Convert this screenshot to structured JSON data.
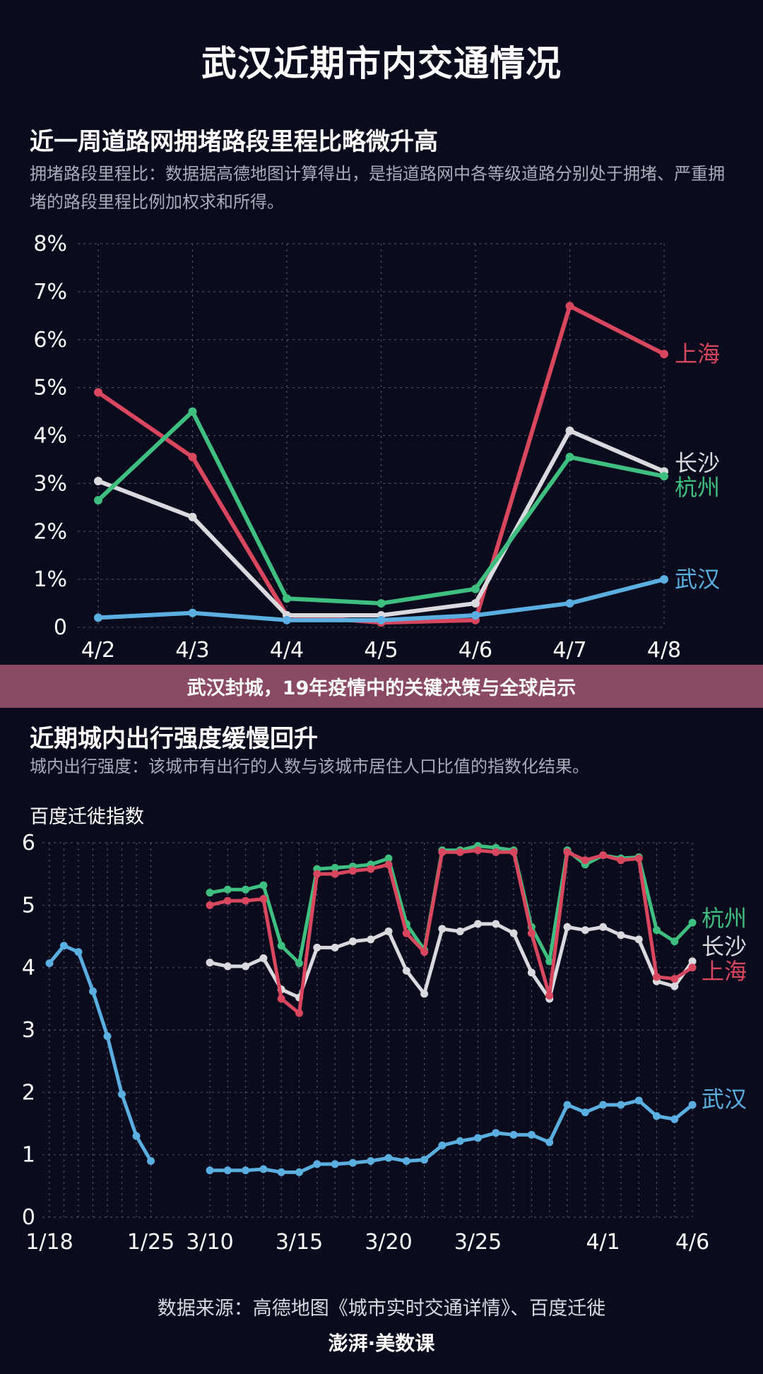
{
  "header": {
    "title": "武汉近期市内交通情况"
  },
  "section1": {
    "title": "近一周道路网拥堵路段里程比略微升高",
    "description": "拥堵路段里程比：数据据高德地图计算得出，是指道路网中各等级道路分别处于拥堵、严重拥堵的路段里程比例加权求和所得。"
  },
  "banner": {
    "text": "武汉封城，19年疫情中的关键决策与全球启示"
  },
  "section2": {
    "title": "近期城内出行强度缓慢回升",
    "description": "城内出行强度：该城市有出行的人数与该城市居住人口比值的指数化结果。"
  },
  "footer": {
    "source": "数据来源：高德地图《城市实时交通详情》、百度迁徙",
    "logo": "澎湃·美数课"
  },
  "chart_data": [
    {
      "type": "line",
      "title": "近一周道路网拥堵路段里程比略微升高",
      "x": [
        "4/2",
        "4/3",
        "4/4",
        "4/5",
        "4/6",
        "4/7",
        "4/8"
      ],
      "ylim": [
        0,
        8
      ],
      "yticks": [
        "0",
        "1%",
        "2%",
        "3%",
        "4%",
        "5%",
        "6%",
        "7%",
        "8%"
      ],
      "grid": true,
      "series": [
        {
          "name": "上海",
          "color": "#d9475f",
          "values": [
            4.9,
            3.55,
            0.25,
            0.1,
            0.15,
            6.7,
            5.7
          ]
        },
        {
          "name": "长沙",
          "color": "#d9d9de",
          "values": [
            3.05,
            2.3,
            0.25,
            0.25,
            0.5,
            4.1,
            3.25
          ]
        },
        {
          "name": "杭州",
          "color": "#3fbf7f",
          "values": [
            2.65,
            4.5,
            0.6,
            0.5,
            0.8,
            3.55,
            3.15
          ]
        },
        {
          "name": "武汉",
          "color": "#5aaee0",
          "values": [
            0.2,
            0.3,
            0.15,
            0.15,
            0.25,
            0.5,
            1.0
          ]
        }
      ]
    },
    {
      "type": "line",
      "title": "近期城内出行强度缓慢回升",
      "ylabel": "百度迁徙指数",
      "ylim": [
        0,
        6
      ],
      "yticks": [
        "0",
        "1",
        "2",
        "3",
        "4",
        "5",
        "6"
      ],
      "grid": true,
      "xticks": [
        "1/18",
        "1/25",
        "3/10",
        "3/15",
        "3/20",
        "3/25",
        "4/1",
        "4/6"
      ],
      "segments": [
        {
          "dates": [
            "1/18",
            "1/19",
            "1/20",
            "1/21",
            "1/22",
            "1/23",
            "1/24",
            "1/25"
          ]
        },
        {
          "dates": [
            "3/10",
            "3/11",
            "3/12",
            "3/13",
            "3/14",
            "3/15",
            "3/16",
            "3/17",
            "3/18",
            "3/19",
            "3/20",
            "3/21",
            "3/22",
            "3/23",
            "3/24",
            "3/25",
            "3/26",
            "3/27",
            "3/28",
            "3/29",
            "3/30",
            "3/31",
            "4/1",
            "4/2",
            "4/3",
            "4/4",
            "4/5",
            "4/6"
          ]
        }
      ],
      "series": [
        {
          "name": "武汉",
          "color": "#5aaee0",
          "values": [
            4.07,
            4.35,
            4.25,
            3.62,
            2.9,
            1.97,
            1.3,
            0.9,
            0.75,
            0.75,
            0.75,
            0.77,
            0.72,
            0.72,
            0.85,
            0.85,
            0.87,
            0.9,
            0.95,
            0.9,
            0.92,
            1.15,
            1.22,
            1.27,
            1.35,
            1.32,
            1.32,
            1.2,
            1.8,
            1.68,
            1.8,
            1.8,
            1.87,
            1.62,
            1.57,
            1.8
          ]
        },
        {
          "name": "杭州",
          "color": "#3fbf7f",
          "values": [
            null,
            null,
            null,
            null,
            null,
            null,
            null,
            null,
            5.2,
            5.25,
            5.25,
            5.32,
            4.35,
            4.07,
            5.58,
            5.6,
            5.62,
            5.65,
            5.75,
            4.7,
            4.28,
            5.88,
            5.88,
            5.95,
            5.92,
            5.88,
            4.65,
            4.1,
            5.88,
            5.65,
            5.8,
            5.75,
            5.77,
            4.6,
            4.42,
            4.72
          ]
        },
        {
          "name": "长沙",
          "color": "#d9d9de",
          "values": [
            null,
            null,
            null,
            null,
            null,
            null,
            null,
            null,
            4.08,
            4.02,
            4.02,
            4.15,
            3.65,
            3.52,
            4.32,
            4.32,
            4.42,
            4.45,
            4.58,
            3.95,
            3.58,
            4.62,
            4.58,
            4.7,
            4.7,
            4.55,
            3.92,
            3.5,
            4.65,
            4.6,
            4.65,
            4.52,
            4.45,
            3.78,
            3.7,
            4.1
          ]
        },
        {
          "name": "上海",
          "color": "#d9475f",
          "values": [
            null,
            null,
            null,
            null,
            null,
            null,
            null,
            null,
            5.0,
            5.07,
            5.07,
            5.1,
            3.5,
            3.27,
            5.5,
            5.5,
            5.55,
            5.58,
            5.65,
            4.55,
            4.25,
            5.85,
            5.85,
            5.88,
            5.85,
            5.85,
            4.55,
            3.55,
            5.85,
            5.72,
            5.8,
            5.72,
            5.75,
            3.85,
            3.82,
            4.0
          ]
        }
      ]
    }
  ]
}
